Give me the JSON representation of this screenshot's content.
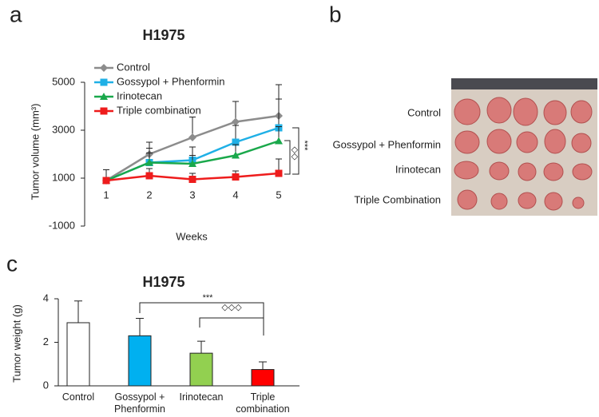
{
  "panel_labels": [
    "a",
    "b",
    "c"
  ],
  "photo": {
    "row_labels": [
      "Control",
      "Gossypol + Phenformin",
      "Irinotecan",
      "Triple Combination"
    ]
  },
  "chart_data": [
    {
      "type": "line",
      "title": "H1975",
      "x_label": "Weeks",
      "y_label": "Tumor volume (mm³)",
      "categories": [
        "1",
        "2",
        "3",
        "4",
        "5"
      ],
      "ylim": [
        -1000,
        5000
      ],
      "yticks": [
        -1000,
        1000,
        3000,
        5000
      ],
      "legend": "top-left",
      "series": [
        {
          "name": "Control",
          "color": "#8c8c8c",
          "marker": "diamond",
          "values": [
            900,
            2000,
            2700,
            3350,
            3600
          ],
          "errors": [
            450,
            500,
            850,
            850,
            1300
          ]
        },
        {
          "name": "Gossypol + Phenformin",
          "color": "#1fb0e6",
          "marker": "square",
          "values": [
            900,
            1650,
            1750,
            2500,
            3100
          ],
          "errors": [
            450,
            600,
            550,
            700,
            1200
          ]
        },
        {
          "name": "Irinotecan",
          "color": "#1aa84b",
          "marker": "triangle",
          "values": [
            900,
            1650,
            1600,
            1950,
            2550
          ],
          "errors": [
            450,
            400,
            350,
            450,
            600
          ]
        },
        {
          "name": "Triple combination",
          "color": "#ee1c1c",
          "marker": "square",
          "values": [
            900,
            1100,
            950,
            1050,
            1200
          ],
          "errors": [
            450,
            300,
            250,
            250,
            600
          ]
        }
      ],
      "annotations": [
        "***",
        "◇◇"
      ]
    },
    {
      "type": "bar",
      "title": "H1975",
      "y_label": "Tumor weight (g)",
      "categories": [
        "Control",
        "Gossypol + Phenformin",
        "Irinotecan",
        "Triple combination"
      ],
      "colors": [
        "#ffffff",
        "#00b0f0",
        "#92d050",
        "#ff0000"
      ],
      "values": [
        2.9,
        2.3,
        1.5,
        0.75
      ],
      "errors": [
        1.0,
        0.8,
        0.55,
        0.35
      ],
      "ylim": [
        0,
        4
      ],
      "yticks": [
        0,
        2,
        4
      ],
      "annotations": [
        "***",
        "◇◇◇"
      ]
    }
  ]
}
